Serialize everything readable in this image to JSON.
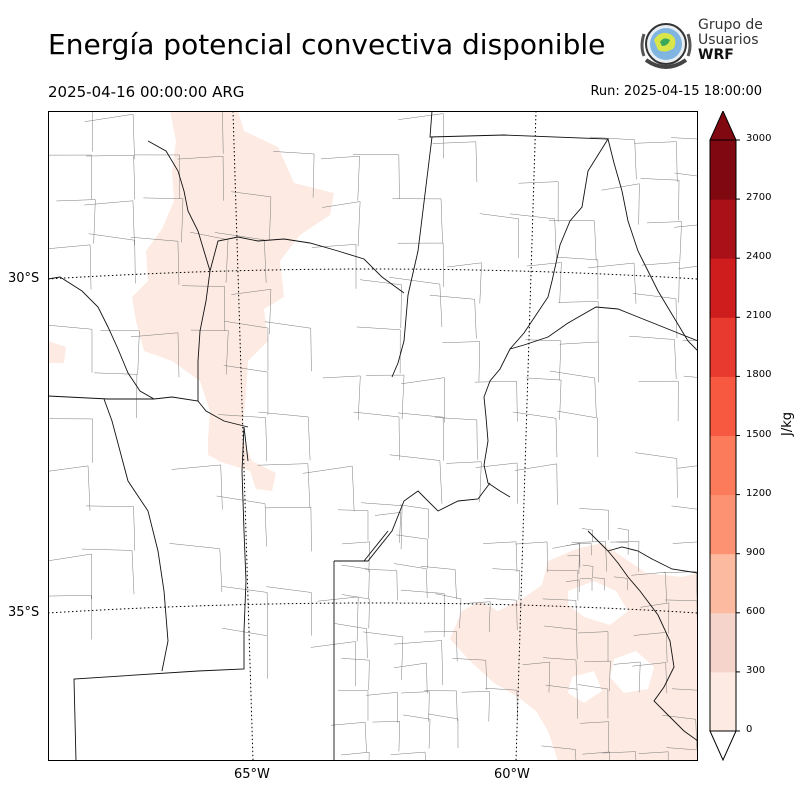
{
  "header": {
    "title": "Energía potencial convectiva disponible",
    "valid_time": "2025-04-16 00:00:00 ARG",
    "run_time": "Run: 2025-04-15 18:00:00"
  },
  "logo": {
    "line1": "Grupo de",
    "line2": "Usuarios",
    "line3": "WRF"
  },
  "map": {
    "lat_labels": [
      "30°S",
      "35°S"
    ],
    "lon_labels": [
      "65°W",
      "60°W"
    ],
    "field": "CAPE",
    "shaded_class": "0–300 J/kg"
  },
  "colorbar": {
    "unit": "J/kg",
    "ticks": [
      "3000",
      "2700",
      "2400",
      "2100",
      "1800",
      "1500",
      "1200",
      "900",
      "600",
      "300",
      "0"
    ],
    "levels": [
      0,
      300,
      600,
      900,
      1200,
      1500,
      1800,
      2100,
      2400,
      2700,
      3000
    ],
    "colors": [
      "#fdeae2",
      "#f5d5cb",
      "#fcbba1",
      "#fc9272",
      "#fb7b5b",
      "#f6593f",
      "#e83a2f",
      "#cf1c1d",
      "#a91017",
      "#7f0811"
    ]
  }
}
